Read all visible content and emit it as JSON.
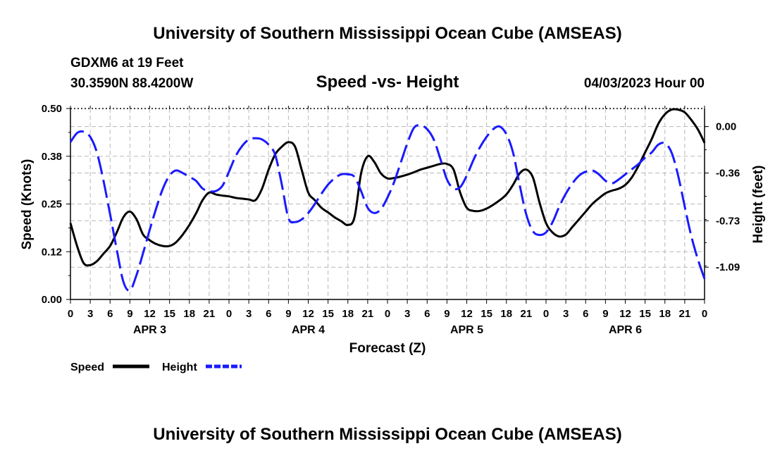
{
  "header": {
    "title": "University of Southern Mississippi Ocean Cube (AMSEAS)",
    "station": "GDXM6 at 19 Feet",
    "coords": "30.3590N  88.4200W",
    "subtitle": "Speed -vs- Height",
    "datetime": "04/03/2023 Hour 00"
  },
  "footer": {
    "title": "University of Southern Mississippi Ocean Cube (AMSEAS)"
  },
  "chart_data": {
    "type": "line",
    "xlabel": "Forecast (Z)",
    "ylabel_left": "Speed (Knots)",
    "ylabel_right": "Height (feet)",
    "x_range_hours": [
      0,
      96
    ],
    "x_tick_labels": [
      "0",
      "3",
      "6",
      "9",
      "12",
      "15",
      "18",
      "21",
      "0",
      "3",
      "6",
      "9",
      "12",
      "15",
      "18",
      "21",
      "0",
      "3",
      "6",
      "9",
      "12",
      "15",
      "18",
      "21",
      "0",
      "3",
      "6",
      "9",
      "12",
      "15",
      "18",
      "21",
      "0"
    ],
    "day_labels": [
      "APR 3",
      "APR 4",
      "APR 5",
      "APR 6"
    ],
    "ylim_left": [
      0.0,
      0.5
    ],
    "yticks_left": [
      "0.00",
      "0.12",
      "0.25",
      "0.38",
      "0.50"
    ],
    "ylim_right": [
      -1.34,
      0.14
    ],
    "yticks_right": [
      {
        "value": 0.0,
        "label": "0.00"
      },
      {
        "value": -0.36,
        "label": "-0.36"
      },
      {
        "value": -0.73,
        "label": "-0.73"
      },
      {
        "value": -1.09,
        "label": "-1.09"
      }
    ],
    "grid": true,
    "legend": "bottom-left",
    "series": [
      {
        "name": "Speed",
        "color": "#000000",
        "style": "solid",
        "axis": "left",
        "x": [
          0,
          1,
          2,
          3,
          4,
          5,
          6,
          7,
          8,
          9,
          10,
          11,
          12,
          13,
          14,
          15,
          16,
          17,
          18,
          19,
          20,
          21,
          22,
          23,
          24,
          25,
          26,
          27,
          28,
          29,
          30,
          31,
          32,
          33,
          34,
          35,
          36,
          37,
          38,
          39,
          40,
          41,
          42,
          43,
          44,
          45,
          46,
          47,
          48,
          49,
          50,
          51,
          52,
          53,
          54,
          55,
          56,
          57,
          58,
          59,
          60,
          61,
          62,
          63,
          64,
          65,
          66,
          67,
          68,
          69,
          70,
          71,
          72,
          73,
          74,
          75,
          76,
          77,
          78,
          79,
          80,
          81,
          82,
          83,
          84,
          85,
          86,
          87,
          88,
          89,
          90,
          91,
          92,
          93,
          94,
          95,
          96
        ],
        "values": [
          0.2,
          0.14,
          0.095,
          0.09,
          0.1,
          0.12,
          0.14,
          0.175,
          0.215,
          0.23,
          0.21,
          0.17,
          0.155,
          0.145,
          0.14,
          0.14,
          0.15,
          0.17,
          0.195,
          0.225,
          0.26,
          0.28,
          0.275,
          0.272,
          0.27,
          0.266,
          0.264,
          0.262,
          0.26,
          0.29,
          0.34,
          0.38,
          0.4,
          0.412,
          0.4,
          0.34,
          0.28,
          0.26,
          0.24,
          0.228,
          0.215,
          0.205,
          0.195,
          0.215,
          0.33,
          0.375,
          0.36,
          0.33,
          0.317,
          0.318,
          0.322,
          0.327,
          0.333,
          0.34,
          0.345,
          0.35,
          0.355,
          0.355,
          0.34,
          0.28,
          0.24,
          0.232,
          0.232,
          0.238,
          0.248,
          0.26,
          0.275,
          0.3,
          0.33,
          0.34,
          0.32,
          0.255,
          0.2,
          0.175,
          0.165,
          0.17,
          0.19,
          0.21,
          0.23,
          0.25,
          0.265,
          0.278,
          0.285,
          0.29,
          0.3,
          0.32,
          0.35,
          0.385,
          0.42,
          0.46,
          0.485,
          0.497,
          0.497,
          0.49,
          0.47,
          0.445,
          0.41
        ]
      },
      {
        "name": "Height",
        "color": "#1a1aff",
        "style": "dashed",
        "axis": "right",
        "x": [
          0,
          1,
          2,
          3,
          4,
          5,
          6,
          7,
          8,
          9,
          10,
          11,
          12,
          13,
          14,
          15,
          16,
          17,
          18,
          19,
          20,
          21,
          22,
          23,
          24,
          25,
          26,
          27,
          28,
          29,
          30,
          31,
          32,
          33,
          34,
          35,
          36,
          37,
          38,
          39,
          40,
          41,
          42,
          43,
          44,
          45,
          46,
          47,
          48,
          49,
          50,
          51,
          52,
          53,
          54,
          55,
          56,
          57,
          58,
          59,
          60,
          61,
          62,
          63,
          64,
          65,
          66,
          67,
          68,
          69,
          70,
          71,
          72,
          73,
          74,
          75,
          76,
          77,
          78,
          79,
          80,
          81,
          82,
          83,
          84,
          85,
          86,
          87,
          88,
          89,
          90,
          91,
          92,
          93,
          94,
          95,
          96
        ],
        "values": [
          -0.12,
          -0.05,
          -0.04,
          -0.08,
          -0.2,
          -0.42,
          -0.68,
          -0.95,
          -1.2,
          -1.27,
          -1.15,
          -0.98,
          -0.8,
          -0.63,
          -0.48,
          -0.38,
          -0.34,
          -0.36,
          -0.39,
          -0.42,
          -0.48,
          -0.5,
          -0.5,
          -0.46,
          -0.35,
          -0.23,
          -0.15,
          -0.1,
          -0.09,
          -0.1,
          -0.14,
          -0.22,
          -0.45,
          -0.71,
          -0.74,
          -0.72,
          -0.67,
          -0.6,
          -0.52,
          -0.45,
          -0.4,
          -0.37,
          -0.37,
          -0.39,
          -0.5,
          -0.63,
          -0.67,
          -0.64,
          -0.55,
          -0.43,
          -0.28,
          -0.13,
          -0.01,
          0.01,
          -0.02,
          -0.1,
          -0.25,
          -0.41,
          -0.48,
          -0.47,
          -0.38,
          -0.26,
          -0.16,
          -0.08,
          -0.02,
          0.0,
          -0.06,
          -0.2,
          -0.45,
          -0.68,
          -0.81,
          -0.84,
          -0.82,
          -0.74,
          -0.62,
          -0.52,
          -0.44,
          -0.38,
          -0.35,
          -0.34,
          -0.37,
          -0.42,
          -0.44,
          -0.41,
          -0.37,
          -0.33,
          -0.29,
          -0.24,
          -0.2,
          -0.14,
          -0.13,
          -0.2,
          -0.38,
          -0.62,
          -0.85,
          -1.03,
          -1.18
        ]
      }
    ]
  }
}
